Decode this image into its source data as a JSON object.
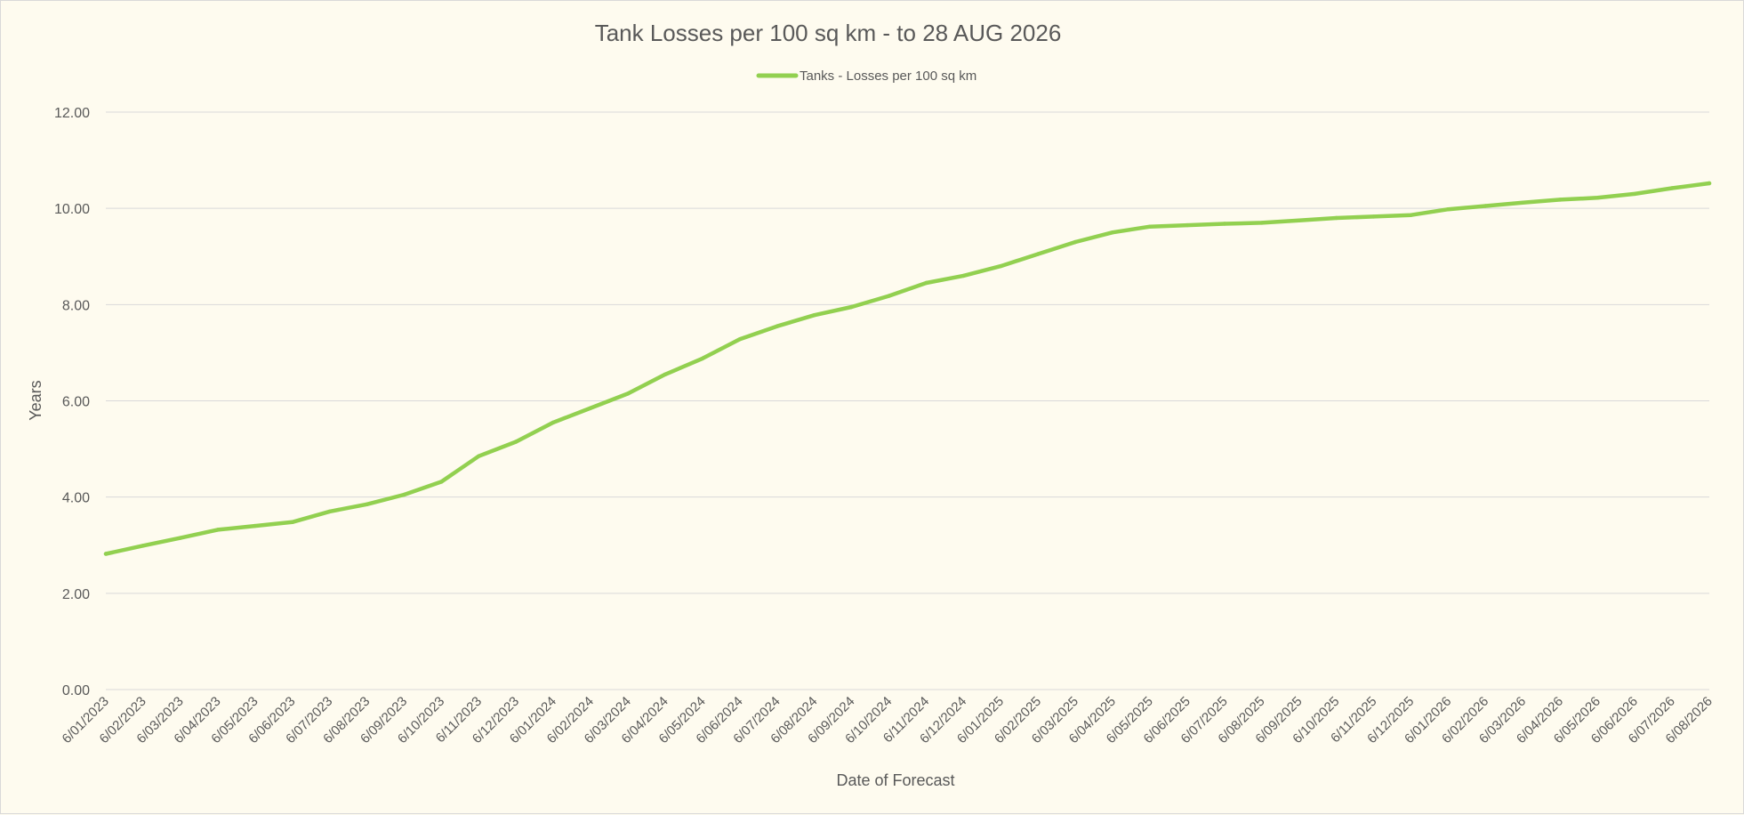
{
  "chart_data": {
    "type": "line",
    "title": "Tank Losses per 100 sq km - to 28 AUG 2026",
    "xlabel": "Date of Forecast",
    "ylabel": "Years",
    "ylim": [
      0,
      12
    ],
    "yticks": [
      "0.00",
      "2.00",
      "4.00",
      "6.00",
      "8.00",
      "10.00",
      "12.00"
    ],
    "grid": true,
    "legend_position": "top-center",
    "categories": [
      "6/01/2023",
      "6/02/2023",
      "6/03/2023",
      "6/04/2023",
      "6/05/2023",
      "6/06/2023",
      "6/07/2023",
      "6/08/2023",
      "6/09/2023",
      "6/10/2023",
      "6/11/2023",
      "6/12/2023",
      "6/01/2024",
      "6/02/2024",
      "6/03/2024",
      "6/04/2024",
      "6/05/2024",
      "6/06/2024",
      "6/07/2024",
      "6/08/2024",
      "6/09/2024",
      "6/10/2024",
      "6/11/2024",
      "6/12/2024",
      "6/01/2025",
      "6/02/2025",
      "6/03/2025",
      "6/04/2025",
      "6/05/2025",
      "6/06/2025",
      "6/07/2025",
      "6/08/2025",
      "6/09/2025",
      "6/10/2025",
      "6/11/2025",
      "6/12/2025",
      "6/01/2026",
      "6/02/2026",
      "6/03/2026",
      "6/04/2026",
      "6/05/2026",
      "6/06/2026",
      "6/07/2026",
      "6/08/2026"
    ],
    "series": [
      {
        "name": "Tanks - Losses per 100 sq km",
        "color": "#92d050",
        "values": [
          2.82,
          2.99,
          3.15,
          3.32,
          3.4,
          3.48,
          3.7,
          3.85,
          4.05,
          4.32,
          4.85,
          5.15,
          5.55,
          5.85,
          6.15,
          6.55,
          6.88,
          7.28,
          7.55,
          7.78,
          7.95,
          8.18,
          8.45,
          8.6,
          8.8,
          9.05,
          9.3,
          9.5,
          9.62,
          9.65,
          9.68,
          9.7,
          9.75,
          9.8,
          9.83,
          9.86,
          9.98,
          10.05,
          10.12,
          10.18,
          10.22,
          10.3,
          10.42,
          10.52
        ]
      }
    ]
  }
}
